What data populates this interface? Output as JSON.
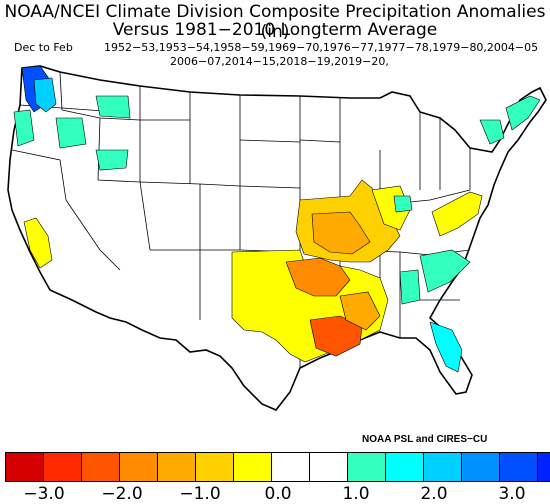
{
  "title": {
    "line1": "NOAA/NCEI Climate Division Composite Precipitation Anomalies (in)",
    "line2": "Versus 1981−2010 Longterm Average"
  },
  "season": "Dec to Feb",
  "years": {
    "line1": "1952−53,1953−54,1958−59,1969−70,1976−77,1977−78,1979−80,2004−05",
    "line2": "2006−07,2014−15,2018−19,2019−20,"
  },
  "credit": "NOAA PSL and CIRES−CU",
  "colorbar": {
    "colors": [
      "#d40000",
      "#ff2a00",
      "#ff5500",
      "#ff8c00",
      "#ffaa00",
      "#ffd000",
      "#ffff00",
      "#ffffff",
      "#ffffff",
      "#33ffbf",
      "#00ffff",
      "#00d0ff",
      "#0090ff",
      "#0050ff",
      "#0022ff"
    ],
    "tick_labels": [
      "−3.0",
      "−2.0",
      "−1.0",
      "0.0",
      "1.0",
      "2.0",
      "3.0"
    ],
    "range": [
      -3.0,
      3.0
    ]
  },
  "map": {
    "region": "Contiguous United States climate divisions",
    "anomaly_colors": {
      "dry_strong": "#ff5500",
      "dry_moderate": "#ff8c00",
      "dry_weak": "#ffaa00",
      "dry_slight": "#ffff00",
      "wet_slight": "#33ffbf",
      "wet_moderate": "#00ffff",
      "wet_strong": "#0050ff"
    }
  }
}
